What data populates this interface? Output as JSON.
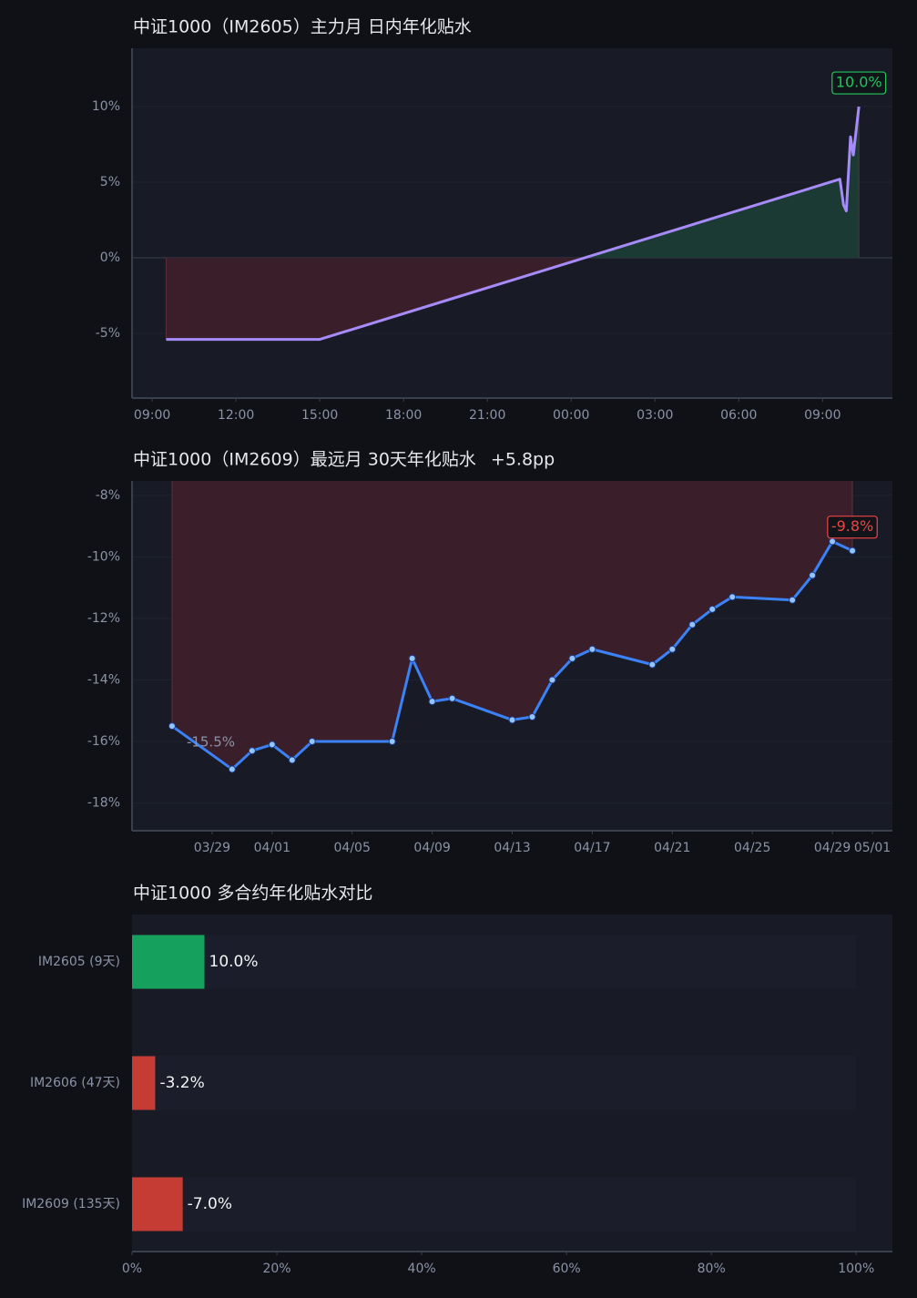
{
  "chart_data": [
    {
      "type": "line",
      "title": "中证1000（IM2605）主力月 日内年化贴水",
      "x": [
        9.5,
        15,
        33.62,
        33.75,
        33.85,
        34.0,
        34.1,
        34.3
      ],
      "series": [
        {
          "name": "IM2605",
          "color": "#a78bfa",
          "values": [
            -5.4,
            -5.4,
            5.2,
            3.5,
            3.1,
            8.0,
            6.8,
            10.0
          ],
          "value_labels": [
            null,
            null,
            null,
            null,
            null,
            null,
            null,
            "10.0%"
          ]
        }
      ],
      "xlim": [
        8.28,
        35.5
      ],
      "xticks": [
        {
          "value": 9,
          "label": "09:00"
        },
        {
          "value": 12,
          "label": "12:00"
        },
        {
          "value": 15,
          "label": "15:00"
        },
        {
          "value": 18,
          "label": "18:00"
        },
        {
          "value": 21,
          "label": "21:00"
        },
        {
          "value": 24,
          "label": "00:00"
        },
        {
          "value": 27,
          "label": "03:00"
        },
        {
          "value": 30,
          "label": "06:00"
        },
        {
          "value": 33,
          "label": "09:00"
        }
      ],
      "ylim": [
        -9.28,
        13.86
      ],
      "yticks": [
        {
          "value": -5,
          "label": "-5%"
        },
        {
          "value": 0,
          "label": "0%"
        },
        {
          "value": 5,
          "label": "5%"
        },
        {
          "value": 10,
          "label": "10%"
        }
      ],
      "grid": true,
      "markers": false,
      "area_colors": {
        "positive": "#1b3a33",
        "negative": "#3a1f2a"
      }
    },
    {
      "type": "line",
      "title": "中证1000（IM2609）最远月 30天年化贴水",
      "subtitle": "+5.8pp",
      "x": [
        "03/27",
        "03/30",
        "03/31",
        "04/01",
        "04/02",
        "04/03",
        "04/07",
        "04/08",
        "04/09",
        "04/10",
        "04/13",
        "04/14",
        "04/15",
        "04/16",
        "04/17",
        "04/20",
        "04/21",
        "04/22",
        "04/23",
        "04/24",
        "04/27",
        "04/28",
        "04/29",
        "04/30"
      ],
      "series": [
        {
          "name": "IM2609",
          "color": "#3b82f6",
          "values": [
            -15.5,
            -16.9,
            -16.3,
            -16.1,
            -16.6,
            -16.0,
            -16.0,
            -13.3,
            -14.7,
            -14.6,
            -15.3,
            -15.2,
            -14.0,
            -13.3,
            -13.0,
            -13.5,
            -13.0,
            -12.2,
            -11.7,
            -11.3,
            -11.4,
            -10.6,
            -9.5,
            -9.8
          ],
          "value_labels": [
            "-15.5%",
            null,
            null,
            null,
            null,
            null,
            null,
            null,
            null,
            null,
            null,
            null,
            null,
            null,
            null,
            null,
            null,
            null,
            null,
            null,
            null,
            null,
            null,
            "-9.8%"
          ]
        }
      ],
      "xlim": [
        "03/25",
        "05/02"
      ],
      "xticks": [
        "03/29",
        "04/01",
        "04/05",
        "04/09",
        "04/13",
        "04/17",
        "04/21",
        "04/25",
        "04/29",
        "05/01"
      ],
      "ylim": [
        -18.9,
        -7.53
      ],
      "yticks": [
        {
          "value": -18,
          "label": "-18%"
        },
        {
          "value": -16,
          "label": "-16%"
        },
        {
          "value": -14,
          "label": "-14%"
        },
        {
          "value": -12,
          "label": "-12%"
        },
        {
          "value": -10,
          "label": "-10%"
        },
        {
          "value": -8,
          "label": "-8%"
        }
      ],
      "grid": true,
      "markers": true,
      "area_colors": {
        "positive": "#1b3a33",
        "negative": "#3a1f2a"
      }
    },
    {
      "type": "hbar",
      "title": "中证1000 多合约年化贴水对比",
      "categories": [
        "IM2605 (9天)",
        "IM2606 (47天)",
        "IM2609 (135天)"
      ],
      "values": [
        10.0,
        -3.2,
        -7.0
      ],
      "value_labels": [
        "10.0%",
        "-3.2%",
        "-7.0%"
      ],
      "positive_color": "#16a05d",
      "negative_color": "#c43c34",
      "xlim": [
        0,
        105
      ],
      "xticks": [
        {
          "value": 0,
          "label": "0%"
        },
        {
          "value": 20,
          "label": "20%"
        },
        {
          "value": 40,
          "label": "40%"
        },
        {
          "value": 60,
          "label": "60%"
        },
        {
          "value": 80,
          "label": "80%"
        },
        {
          "value": 100,
          "label": "100%"
        }
      ]
    }
  ]
}
